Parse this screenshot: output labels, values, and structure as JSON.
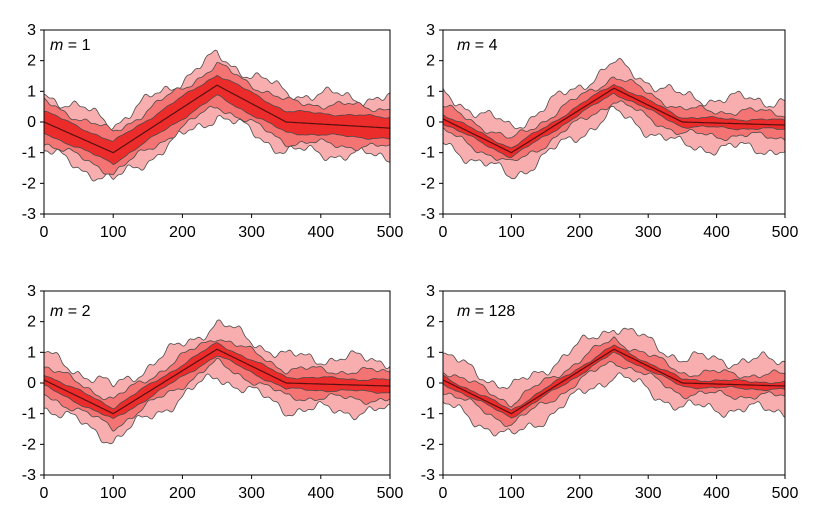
{
  "colors": {
    "outer_band": "#f8aeae",
    "middle_band": "#f47373",
    "inner_band": "#ec2b2b",
    "quantile_lines": "#4a4a4a",
    "mean_line": "#5a1010",
    "frame": "#000000"
  },
  "chart_data": [
    {
      "type": "area",
      "panel_label": "m = 1",
      "m_symbol": "m",
      "m_value": "= 1",
      "xlim": [
        0,
        500
      ],
      "ylim": [
        -3,
        3
      ],
      "xticks": [
        0,
        100,
        200,
        300,
        400,
        500
      ],
      "yticks": [
        3,
        2,
        1,
        0,
        -1,
        -2,
        -3
      ],
      "series": [
        {
          "name": "mean",
          "x": [
            0,
            100,
            250,
            350,
            500
          ],
          "y": [
            0,
            -1,
            1.2,
            0,
            -0.2
          ]
        },
        {
          "name": "band_half_widths",
          "values": [
            0.35,
            0.65,
            0.95
          ]
        }
      ],
      "legend": "none"
    },
    {
      "type": "area",
      "panel_label": "m = 4",
      "m_symbol": "m",
      "m_value": "= 4",
      "xlim": [
        0,
        500
      ],
      "ylim": [
        -3,
        3
      ],
      "xticks": [
        0,
        100,
        200,
        300,
        400,
        500
      ],
      "yticks": [
        3,
        2,
        1,
        0,
        -1,
        -2,
        -3
      ],
      "series": [
        {
          "name": "mean",
          "x": [
            0,
            100,
            250,
            350,
            500
          ],
          "y": [
            0.1,
            -1,
            1.1,
            0,
            -0.1
          ]
        },
        {
          "name": "band_half_widths",
          "values": [
            0.15,
            0.4,
            0.8
          ]
        }
      ],
      "legend": "none"
    },
    {
      "type": "area",
      "panel_label": "m = 2",
      "m_symbol": "m",
      "m_value": "= 2",
      "xlim": [
        0,
        500
      ],
      "ylim": [
        -3,
        3
      ],
      "xticks": [
        0,
        100,
        200,
        300,
        400,
        500
      ],
      "yticks": [
        3,
        2,
        1,
        0,
        -1,
        -2,
        -3
      ],
      "series": [
        {
          "name": "mean",
          "x": [
            0,
            100,
            250,
            350,
            500
          ],
          "y": [
            0.1,
            -1,
            1.1,
            0,
            -0.1
          ]
        },
        {
          "name": "band_half_widths",
          "values": [
            0.2,
            0.45,
            0.85
          ]
        }
      ],
      "legend": "none"
    },
    {
      "type": "area",
      "panel_label": "m = 128",
      "m_symbol": "m",
      "m_value": "= 128",
      "xlim": [
        0,
        500
      ],
      "ylim": [
        -3,
        3
      ],
      "xticks": [
        0,
        100,
        200,
        300,
        400,
        500
      ],
      "yticks": [
        3,
        2,
        1,
        0,
        -1,
        -2,
        -3
      ],
      "series": [
        {
          "name": "mean",
          "x": [
            0,
            100,
            250,
            350,
            500
          ],
          "y": [
            0.1,
            -1,
            1.1,
            0,
            -0.1
          ]
        },
        {
          "name": "band_half_widths",
          "values": [
            0.12,
            0.35,
            0.8
          ]
        }
      ],
      "legend": "none"
    }
  ]
}
